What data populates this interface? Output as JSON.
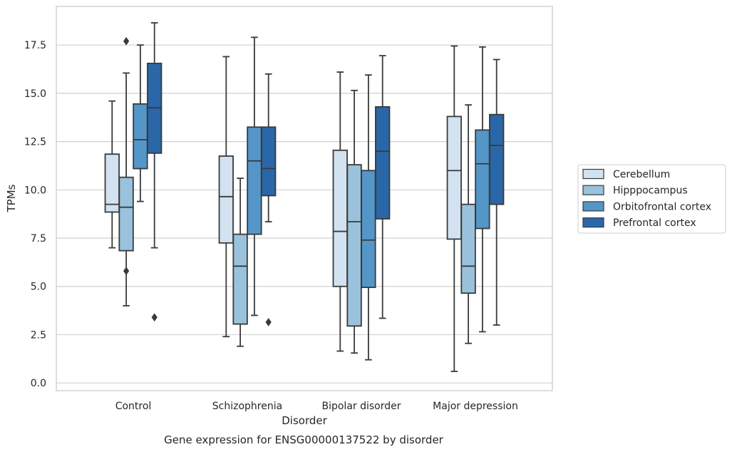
{
  "chart_data": {
    "type": "box",
    "caption": "Gene expression for ENSG00000137522 by disorder",
    "xlabel": "Disorder",
    "ylabel": "TPMs",
    "ylim": [
      -0.4,
      19.5
    ],
    "yticks": [
      0.0,
      2.5,
      5.0,
      7.5,
      10.0,
      12.5,
      15.0,
      17.5
    ],
    "ytick_labels": [
      "0.0",
      "2.5",
      "5.0",
      "7.5",
      "10.0",
      "12.5",
      "15.0",
      "17.5"
    ],
    "grid": "horizontal",
    "legend_position": "right",
    "categories": [
      "Control",
      "Schizophrenia",
      "Bipolar disorder",
      "Major depression"
    ],
    "series": [
      {
        "name": "Cerebellum",
        "color": "#d2e2f1",
        "boxes": [
          {
            "whislo": 7.0,
            "q1": 8.85,
            "med": 9.25,
            "q3": 11.85,
            "whishi": 14.6,
            "fliers": []
          },
          {
            "whislo": 2.4,
            "q1": 7.25,
            "med": 9.65,
            "q3": 11.75,
            "whishi": 16.9,
            "fliers": []
          },
          {
            "whislo": 1.65,
            "q1": 5.0,
            "med": 7.85,
            "q3": 12.05,
            "whishi": 16.1,
            "fliers": []
          },
          {
            "whislo": 0.6,
            "q1": 7.45,
            "med": 11.0,
            "q3": 13.8,
            "whishi": 17.45,
            "fliers": []
          }
        ]
      },
      {
        "name": "Hipppocampus",
        "color": "#9ac2dc",
        "boxes": [
          {
            "whislo": 4.0,
            "q1": 6.85,
            "med": 9.1,
            "q3": 10.65,
            "whishi": 16.05,
            "fliers": [
              5.8,
              17.7
            ]
          },
          {
            "whislo": 1.9,
            "q1": 3.05,
            "med": 6.05,
            "q3": 7.7,
            "whishi": 10.6,
            "fliers": []
          },
          {
            "whislo": 1.55,
            "q1": 2.95,
            "med": 8.35,
            "q3": 11.3,
            "whishi": 15.15,
            "fliers": []
          },
          {
            "whislo": 2.05,
            "q1": 4.65,
            "med": 6.05,
            "q3": 9.25,
            "whishi": 14.4,
            "fliers": []
          }
        ]
      },
      {
        "name": "Orbitofrontal cortex",
        "color": "#5496c8",
        "boxes": [
          {
            "whislo": 9.4,
            "q1": 11.1,
            "med": 12.6,
            "q3": 14.45,
            "whishi": 17.5,
            "fliers": []
          },
          {
            "whislo": 3.5,
            "q1": 7.7,
            "med": 11.5,
            "q3": 13.25,
            "whishi": 17.9,
            "fliers": []
          },
          {
            "whislo": 1.2,
            "q1": 4.95,
            "med": 7.4,
            "q3": 11.0,
            "whishi": 15.95,
            "fliers": []
          },
          {
            "whislo": 2.65,
            "q1": 8.0,
            "med": 11.35,
            "q3": 13.1,
            "whishi": 17.4,
            "fliers": []
          }
        ]
      },
      {
        "name": "Prefrontal cortex",
        "color": "#2a67a8",
        "boxes": [
          {
            "whislo": 7.0,
            "q1": 11.9,
            "med": 14.25,
            "q3": 16.55,
            "whishi": 18.65,
            "fliers": [
              3.4
            ]
          },
          {
            "whislo": 8.35,
            "q1": 9.7,
            "med": 11.1,
            "q3": 13.25,
            "whishi": 16.0,
            "fliers": [
              3.15
            ]
          },
          {
            "whislo": 3.35,
            "q1": 8.5,
            "med": 12.0,
            "q3": 14.3,
            "whishi": 16.95,
            "fliers": []
          },
          {
            "whislo": 3.0,
            "q1": 9.25,
            "med": 12.3,
            "q3": 13.9,
            "whishi": 16.75,
            "fliers": []
          }
        ]
      }
    ]
  }
}
